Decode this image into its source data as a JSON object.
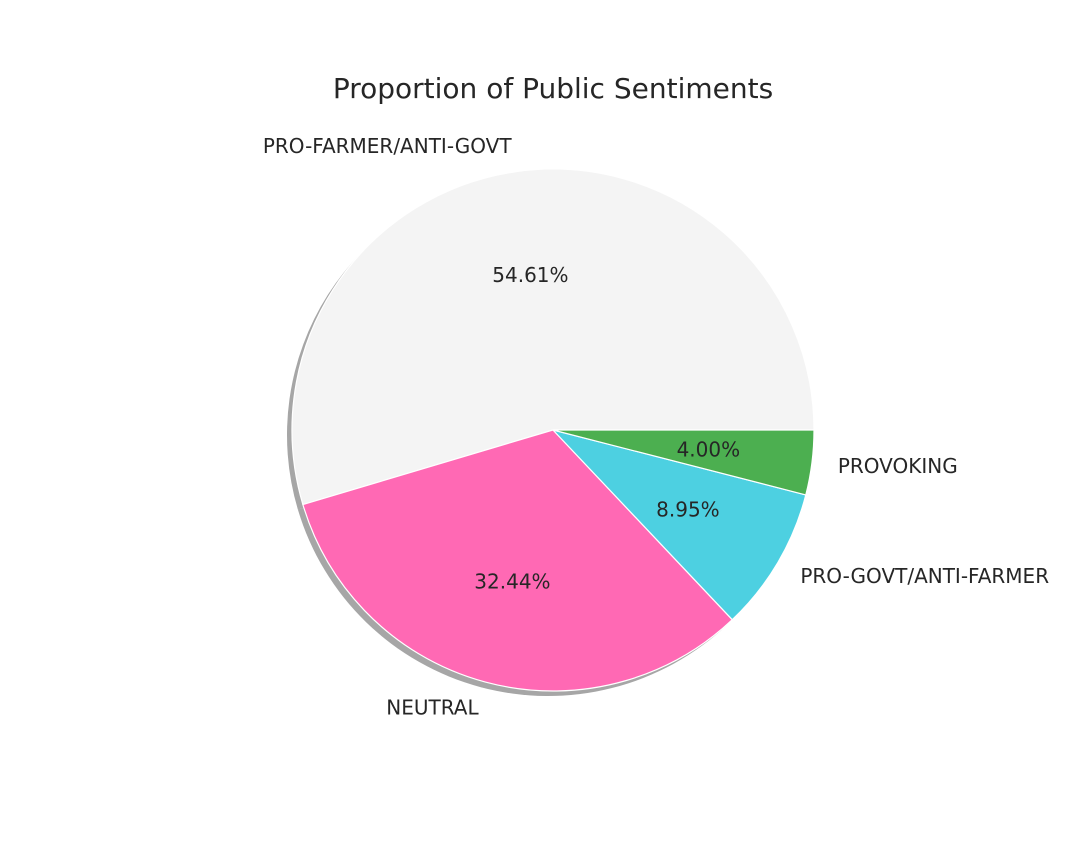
{
  "chart_data": {
    "type": "pie",
    "title": "Proportion of Public Sentiments",
    "slices": [
      {
        "label": "PRO-FARMER/ANTI-GOVT",
        "value": 54.61,
        "pct_label": "54.61%",
        "color": "#f4f4f4"
      },
      {
        "label": "NEUTRAL",
        "value": 32.44,
        "pct_label": "32.44%",
        "color": "#ff69b4"
      },
      {
        "label": "PRO-GOVT/ANTI-FARMER",
        "value": 8.95,
        "pct_label": "8.95%",
        "color": "#4dd0e1"
      },
      {
        "label": "PROVOKING",
        "value": 4.0,
        "pct_label": "4.00%",
        "color": "#4caf50"
      }
    ],
    "start_angle_deg": 0,
    "direction": "counterclockwise",
    "shadow": true,
    "legend": "none"
  }
}
